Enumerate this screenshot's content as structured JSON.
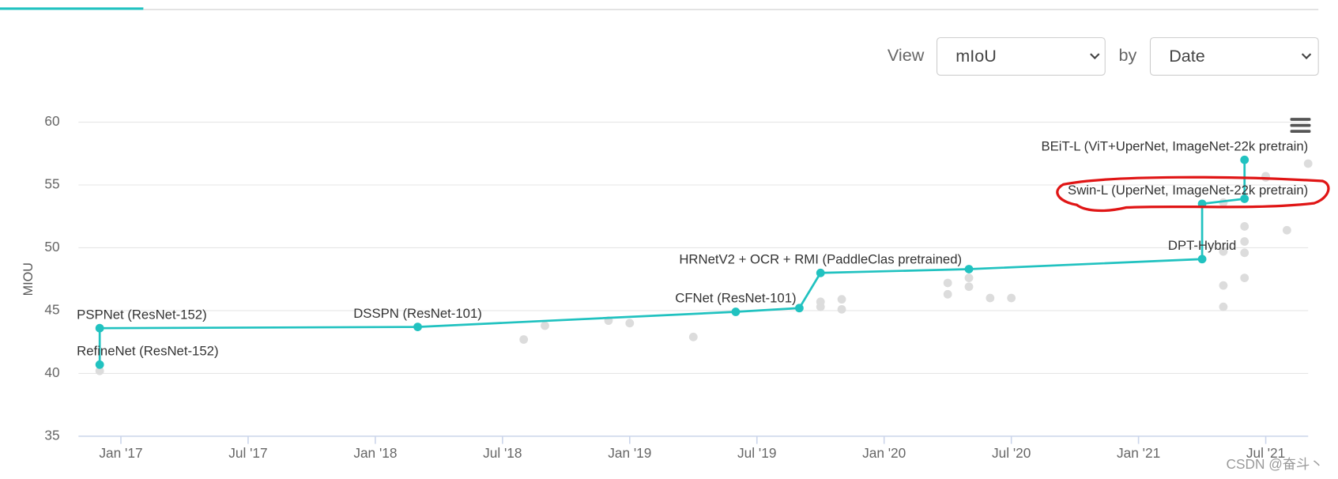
{
  "ui": {
    "view_label": "View",
    "view_value": "mIoU",
    "by_label": "by",
    "by_value": "Date",
    "watermark": "CSDN @奋斗丶"
  },
  "chart_data": {
    "type": "scatter",
    "y_label": "MIOU",
    "xlim": [
      "2016-11",
      "2021-09"
    ],
    "ylim": [
      35,
      60
    ],
    "yticks": [
      35,
      40,
      45,
      50,
      55,
      60
    ],
    "xticks": [
      {
        "value": "2017-01",
        "label": "Jan '17"
      },
      {
        "value": "2017-07",
        "label": "Jul '17"
      },
      {
        "value": "2018-01",
        "label": "Jan '18"
      },
      {
        "value": "2018-07",
        "label": "Jul '18"
      },
      {
        "value": "2019-01",
        "label": "Jan '19"
      },
      {
        "value": "2019-07",
        "label": "Jul '19"
      },
      {
        "value": "2020-01",
        "label": "Jan '20"
      },
      {
        "value": "2020-07",
        "label": "Jul '20"
      },
      {
        "value": "2021-01",
        "label": "Jan '21"
      },
      {
        "value": "2021-07",
        "label": "Jul '21"
      }
    ],
    "grid": true,
    "series": [
      {
        "color": "#dcdcdc",
        "x": [
          "2016-12",
          "2018-08",
          "2018-09",
          "2018-12",
          "2019-01",
          "2019-04",
          "2019-10",
          "2019-10",
          "2019-11",
          "2019-11",
          "2020-04",
          "2020-04",
          "2020-05",
          "2020-05",
          "2020-06",
          "2020-07",
          "2021-05",
          "2021-05",
          "2021-06",
          "2021-06",
          "2021-06",
          "2021-06",
          "2021-05",
          "2021-05",
          "2021-07",
          "2021-07",
          "2021-08",
          "2021-09"
        ],
        "values": [
          40.2,
          42.7,
          43.8,
          44.2,
          44.0,
          42.9,
          45.7,
          45.3,
          45.9,
          45.1,
          47.2,
          46.3,
          47.6,
          46.9,
          46.0,
          46.0,
          45.3,
          47.0,
          51.7,
          50.5,
          49.6,
          47.6,
          49.7,
          53.6,
          55.7,
          55.6,
          51.4,
          56.7
        ]
      },
      {
        "color": "#21c2c0",
        "line": true,
        "x": [
          "2016-12",
          "2016-12",
          "2018-03",
          "2019-06",
          "2019-09",
          "2019-10",
          "2020-05",
          "2021-04",
          "2021-04",
          "2021-06",
          "2021-06"
        ],
        "values": [
          40.7,
          43.6,
          43.7,
          44.9,
          45.2,
          48.0,
          48.3,
          49.1,
          53.5,
          53.9,
          57.0
        ],
        "point_labels": [
          "RefineNet (ResNet-152)",
          "PSPNet (ResNet-152)",
          "DSSPN (ResNet-101)",
          "CFNet (ResNet-101)",
          null,
          "HRNetV2 + OCR + RMI (PaddleClas pretrained)",
          null,
          "DPT-Hybrid",
          "Swin-L (UperNet, ImageNet-22k pretrain)",
          null,
          "BEiT-L (ViT+UperNet, ImageNet-22k pretrain)"
        ]
      }
    ]
  }
}
